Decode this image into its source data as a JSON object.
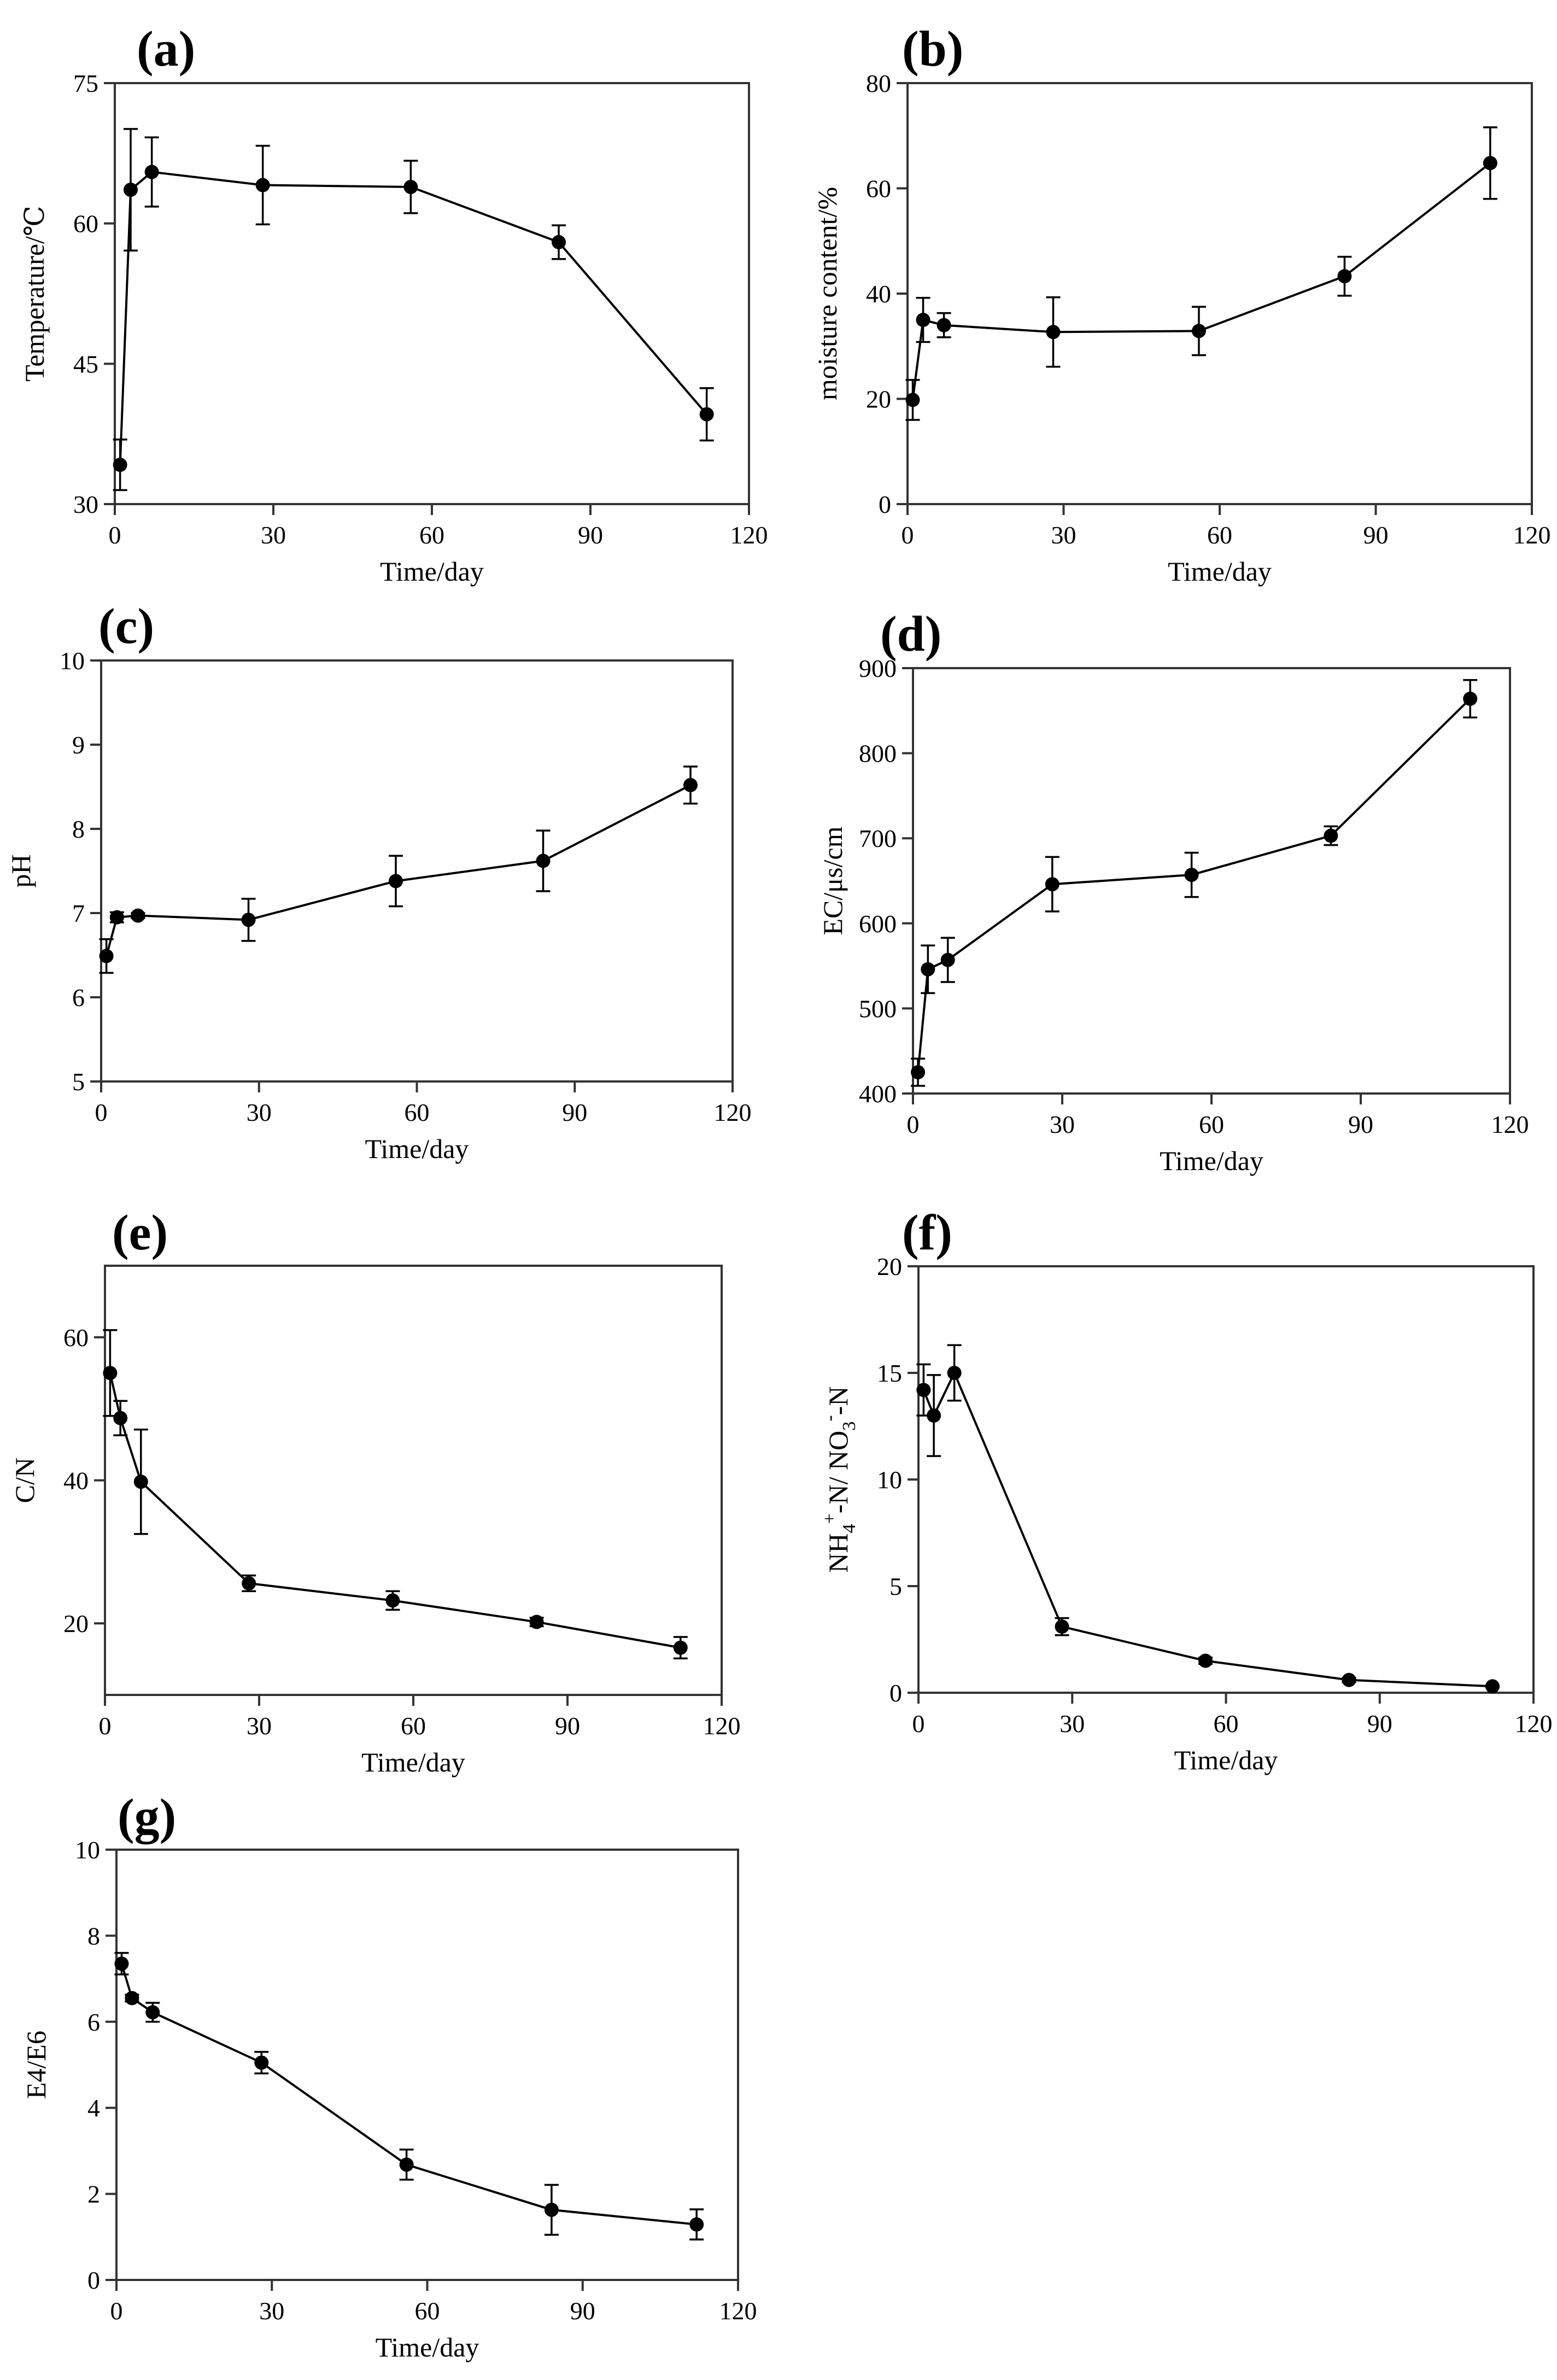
{
  "chart_data": [
    {
      "id": "a",
      "type": "line",
      "panel_label": "(a)",
      "xlabel": "Time/day",
      "ylabel": "Temperature/℃",
      "xlim": [
        0,
        120
      ],
      "ylim": [
        30,
        75
      ],
      "xticks": [
        0,
        30,
        60,
        90,
        120
      ],
      "yticks": [
        30,
        45,
        60,
        75
      ],
      "x": [
        1,
        3,
        7,
        28,
        56,
        84,
        112
      ],
      "y": [
        34.2,
        63.6,
        65.5,
        64.1,
        63.9,
        58.0,
        39.6
      ],
      "err": [
        2.7,
        6.5,
        3.7,
        4.2,
        2.8,
        1.8,
        2.8
      ]
    },
    {
      "id": "b",
      "type": "line",
      "panel_label": "(b)",
      "xlabel": "Time/day",
      "ylabel": "moisture content/%",
      "xlim": [
        0,
        120
      ],
      "ylim": [
        0,
        80
      ],
      "xticks": [
        0,
        30,
        60,
        90,
        120
      ],
      "yticks": [
        0,
        20,
        40,
        60,
        80
      ],
      "x": [
        1,
        3,
        7,
        28,
        56,
        84,
        112
      ],
      "y": [
        19.8,
        35.0,
        34.0,
        32.7,
        32.9,
        43.3,
        64.8
      ],
      "err": [
        3.8,
        4.2,
        2.3,
        6.6,
        4.6,
        3.7,
        6.8
      ]
    },
    {
      "id": "c",
      "type": "line",
      "panel_label": "(c)",
      "xlabel": "Time/day",
      "ylabel": "pH",
      "xlim": [
        0,
        120
      ],
      "ylim": [
        5,
        10
      ],
      "xticks": [
        0,
        30,
        60,
        90,
        120
      ],
      "yticks": [
        5,
        6,
        7,
        8,
        9,
        10
      ],
      "x": [
        1,
        3,
        7,
        28,
        56,
        84,
        112
      ],
      "y": [
        6.49,
        6.95,
        6.97,
        6.92,
        7.38,
        7.62,
        8.52
      ],
      "err": [
        0.2,
        0.06,
        0.03,
        0.25,
        0.3,
        0.36,
        0.22
      ]
    },
    {
      "id": "d",
      "type": "line",
      "panel_label": "(d)",
      "xlabel": "Time/day",
      "ylabel": "EC/μs/cm",
      "xlim": [
        0,
        120
      ],
      "ylim": [
        400,
        900
      ],
      "xticks": [
        0,
        30,
        60,
        90,
        120
      ],
      "yticks": [
        400,
        500,
        600,
        700,
        800,
        900
      ],
      "x": [
        1,
        3,
        7,
        28,
        56,
        84,
        112
      ],
      "y": [
        425,
        546,
        557,
        646,
        657,
        703,
        864
      ],
      "err": [
        16,
        28,
        26,
        32,
        26,
        11,
        22
      ]
    },
    {
      "id": "e",
      "type": "line",
      "panel_label": "(e)",
      "xlabel": "Time/day",
      "ylabel": "C/N",
      "xlim": [
        0,
        120
      ],
      "ylim": [
        10,
        70
      ],
      "xticks": [
        0,
        30,
        60,
        90,
        120
      ],
      "yticks": [
        20,
        40,
        60
      ],
      "x": [
        1,
        3,
        7,
        28,
        56,
        84,
        112
      ],
      "y": [
        55.0,
        48.7,
        39.8,
        25.6,
        23.2,
        20.2,
        16.6
      ],
      "err": [
        6.0,
        2.4,
        7.3,
        1.1,
        1.3,
        0.6,
        1.5
      ]
    },
    {
      "id": "f",
      "type": "line",
      "panel_label": "(f)",
      "xlabel": "Time/day",
      "ylabel_parts": {
        "main": "NH",
        "sub1": "4",
        "sup1": "+",
        "mid": "-N/ NO",
        "sub2": "3",
        "sup2": "-",
        "end": "-N"
      },
      "xlim": [
        0,
        120
      ],
      "ylim": [
        0,
        20
      ],
      "xticks": [
        0,
        30,
        60,
        90,
        120
      ],
      "yticks": [
        0,
        5,
        10,
        15,
        20
      ],
      "x": [
        1,
        3,
        7,
        28,
        56,
        84,
        112
      ],
      "y": [
        14.2,
        13.0,
        15.0,
        3.1,
        1.5,
        0.6,
        0.3
      ],
      "err": [
        1.2,
        1.9,
        1.3,
        0.4,
        0.15,
        0.1,
        0.05
      ]
    },
    {
      "id": "g",
      "type": "line",
      "panel_label": "(g)",
      "xlabel": "Time/day",
      "ylabel": "E4/E6",
      "xlim": [
        0,
        120
      ],
      "ylim": [
        0,
        10
      ],
      "xticks": [
        0,
        30,
        60,
        90,
        120
      ],
      "yticks": [
        0,
        2,
        4,
        6,
        8,
        10
      ],
      "x": [
        1,
        3,
        7,
        28,
        56,
        84,
        112
      ],
      "y": [
        7.35,
        6.55,
        6.22,
        5.05,
        2.68,
        1.63,
        1.29
      ],
      "err": [
        0.25,
        0.08,
        0.22,
        0.25,
        0.35,
        0.58,
        0.35
      ]
    }
  ]
}
